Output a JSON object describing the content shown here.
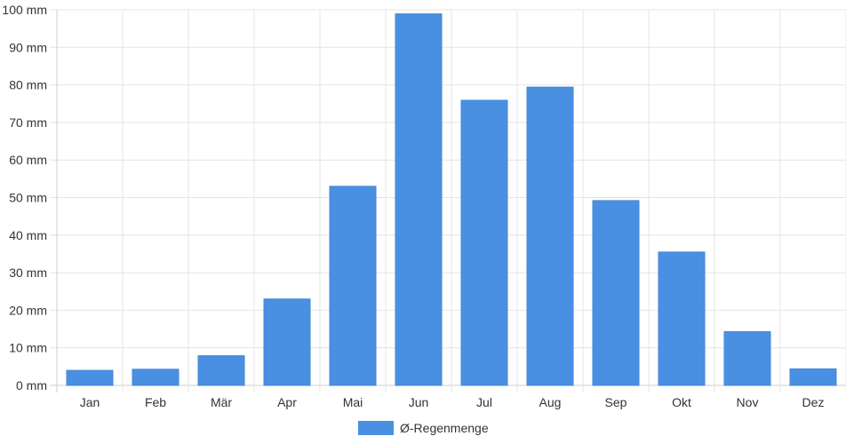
{
  "chart_data": {
    "type": "bar",
    "categories": [
      "Jan",
      "Feb",
      "Mär",
      "Apr",
      "Mai",
      "Jun",
      "Jul",
      "Aug",
      "Sep",
      "Okt",
      "Nov",
      "Dez"
    ],
    "series": [
      {
        "name": "Ø-Regenmenge",
        "values": [
          4,
          4.3,
          7.9,
          23,
          53,
          98.9,
          75.9,
          79.4,
          49.2,
          35.5,
          14.3,
          4.4
        ],
        "color": "#4a90e2"
      }
    ],
    "y_ticks": [
      "0 mm",
      "10 mm",
      "20 mm",
      "30 mm",
      "40 mm",
      "50 mm",
      "60 mm",
      "70 mm",
      "80 mm",
      "90 mm",
      "100 mm"
    ],
    "ylim": [
      0,
      100
    ],
    "grid": true,
    "legend": {
      "label": "Ø-Regenmenge",
      "placement": "bottom-center"
    }
  }
}
